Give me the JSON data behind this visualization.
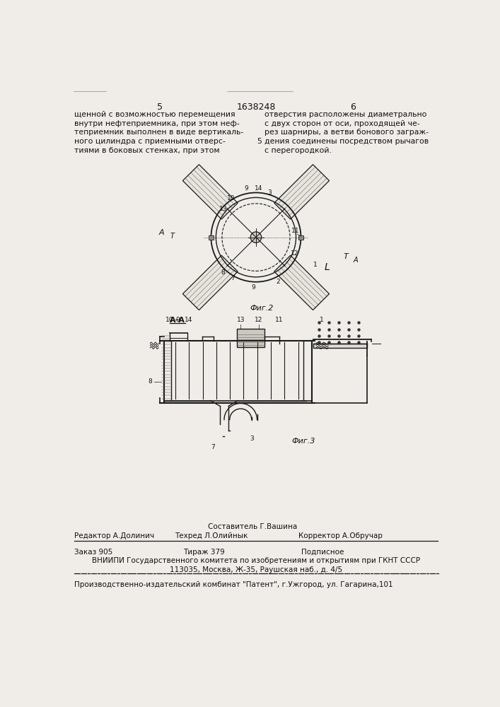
{
  "bg_color": "#f0ede8",
  "page_num_left": "5",
  "page_num_center": "1638248",
  "page_num_right": "6",
  "col_left_text": [
    "щенной с возможностью перемещения",
    "внутри нефтеприемника, при этом неф-",
    "теприемник выполнен в виде вертикаль-",
    "ного цилиндра с приемными отверс-",
    "тиями в боковых стенках, при этом"
  ],
  "col_right_text": [
    "отверстия расположены диаметрально",
    "с двух сторон от оси, проходящей че-",
    "рез шарниры, а ветви бонового заграж-",
    "дения соединены посредством рычагов",
    "с перегородкой."
  ],
  "line_number_5": "5",
  "fig2_label": "Фиг.2",
  "fig3_label": "Фиг.3",
  "section_label": "А-А",
  "label_AT": "АТ",
  "label_TA": "ТА",
  "label_L": "L",
  "footer_comp": "Составитель Г.Вашина",
  "footer_editor": "Редактор А.Долинич",
  "footer_tekhred": "Техред Л.Олийнык",
  "footer_korr": "Корректор А.Обручар",
  "footer_order": "Заказ 905",
  "footer_tirazh": "Тираж 379",
  "footer_podp": "Подписное",
  "footer_vnipi": "ВНИИПИ Государственного комитета по изобретениям и открытиям при ГКНТ СССР",
  "footer_address": "113035, Москва, Ж-35, Раушская наб., д. 4/5",
  "footer_patent": "Производственно-издательский комбинат \"Патент\", г.Ужгород, ул. Гагарина,101",
  "line_color": "#1a1a1a",
  "text_color": "#111111"
}
